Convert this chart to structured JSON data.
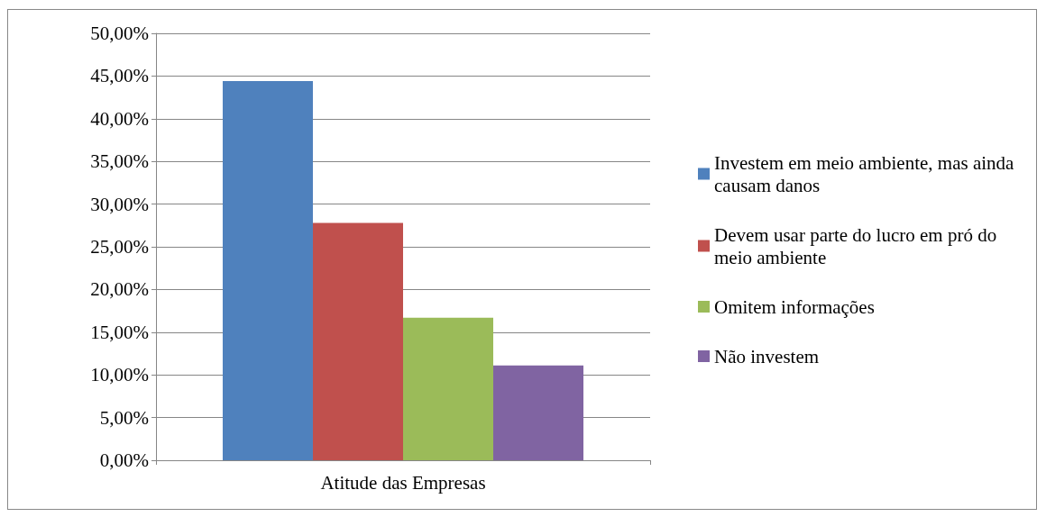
{
  "chart_data": {
    "type": "bar",
    "categories": [
      "Atitude das Empresas"
    ],
    "series": [
      {
        "name": "Investem em meio ambiente, mas ainda causam danos",
        "color": "#4f81bd",
        "values": [
          44.4
        ]
      },
      {
        "name": "Devem usar parte do lucro em pró do meio ambiente",
        "color": "#c0504d",
        "values": [
          27.8
        ]
      },
      {
        "name": "Omitem informações",
        "color": "#9bbb59",
        "values": [
          16.7
        ]
      },
      {
        "name": "Não investem",
        "color": "#8064a2",
        "values": [
          11.1
        ]
      }
    ],
    "ylim": [
      0,
      50
    ],
    "yticks": [
      {
        "value": 0,
        "label": "0,00%"
      },
      {
        "value": 5,
        "label": "5,00%"
      },
      {
        "value": 10,
        "label": "10,00%"
      },
      {
        "value": 15,
        "label": "15,00%"
      },
      {
        "value": 20,
        "label": "20,00%"
      },
      {
        "value": 25,
        "label": "25,00%"
      },
      {
        "value": 30,
        "label": "30,00%"
      },
      {
        "value": 35,
        "label": "35,00%"
      },
      {
        "value": 40,
        "label": "40,00%"
      },
      {
        "value": 45,
        "label": "45,00%"
      },
      {
        "value": 50,
        "label": "50,00%"
      }
    ],
    "grid": "y",
    "legend": "right"
  }
}
